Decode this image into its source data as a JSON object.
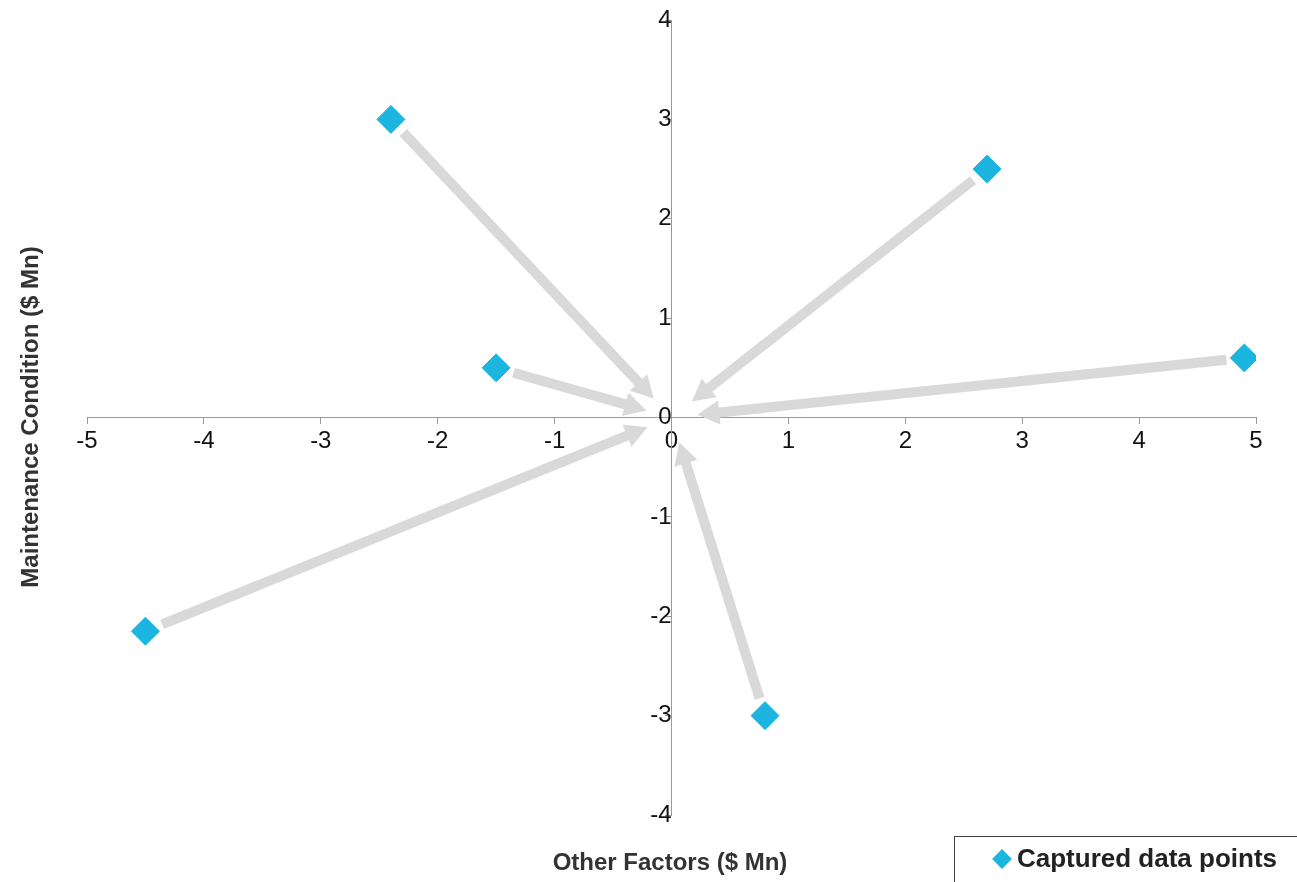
{
  "chart_data": {
    "type": "scatter",
    "xlabel": "Other Factors ($ Mn)",
    "ylabel": "Maintenance Condition ($ Mn)",
    "x": [
      -2.4,
      2.7,
      -1.5,
      4.9,
      -4.5,
      0.8
    ],
    "series": [
      {
        "name": "Captured data points",
        "color": "#1cb5e0",
        "values": [
          3,
          2.5,
          0.5,
          0.6,
          -2.15,
          -3
        ]
      }
    ],
    "xlim": [
      -5,
      5
    ],
    "xticks": [
      -5,
      -4,
      -3,
      -2,
      -1,
      0,
      1,
      2,
      3,
      4,
      5
    ],
    "ylim": [
      -4,
      4
    ],
    "yticks": [
      -4,
      -3,
      -2,
      -1,
      0,
      1,
      2,
      3,
      4
    ],
    "grid": false,
    "legend": "bottom right",
    "marker": "diamond"
  }
}
